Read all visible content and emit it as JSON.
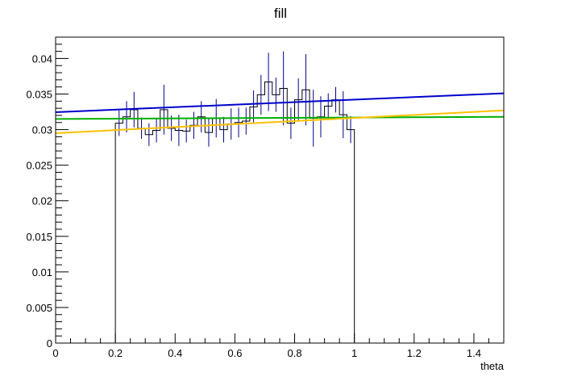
{
  "chart_data": {
    "type": "line",
    "title": "fill",
    "xlabel": "theta",
    "ylabel": "",
    "xlim": [
      0,
      1.5
    ],
    "ylim": [
      0,
      0.043
    ],
    "grid": false,
    "x_ticks": [
      0,
      0.2,
      0.4,
      0.6,
      0.8,
      1,
      1.2,
      1.4
    ],
    "x_tick_labels": [
      "0",
      "0.2",
      "0.4",
      "0.6",
      "0.8",
      "1",
      "1.2",
      "1.4"
    ],
    "y_ticks": [
      0,
      0.005,
      0.01,
      0.015,
      0.02,
      0.025,
      0.03,
      0.035,
      0.04
    ],
    "y_tick_labels": [
      "0",
      "0.005",
      "0.01",
      "0.015",
      "0.02",
      "0.025",
      "0.03",
      "0.035",
      "0.04"
    ],
    "histogram": {
      "color": "#000000",
      "error_color": "#00008b",
      "bin_edges": [
        0.175,
        0.2,
        0.225,
        0.25,
        0.275,
        0.3,
        0.325,
        0.35,
        0.375,
        0.4,
        0.425,
        0.45,
        0.475,
        0.5,
        0.525,
        0.55,
        0.575,
        0.6,
        0.625,
        0.65,
        0.675,
        0.7,
        0.725,
        0.75,
        0.775,
        0.8,
        0.825,
        0.85,
        0.875,
        0.9,
        0.925,
        0.95,
        0.975,
        1.0
      ],
      "values": [
        0,
        0.0309,
        0.0318,
        0.0328,
        0.0302,
        0.0293,
        0.0299,
        0.0328,
        0.0302,
        0.0299,
        0.0298,
        0.0306,
        0.0318,
        0.0296,
        0.0316,
        0.03,
        0.0308,
        0.031,
        0.0312,
        0.0332,
        0.0349,
        0.0367,
        0.0349,
        0.0358,
        0.0309,
        0.0342,
        0.0356,
        0.0316,
        0.0318,
        0.0333,
        0.0342,
        0.0321,
        0.03
      ],
      "errors": [
        0,
        0.0018,
        0.0022,
        0.0025,
        0.0015,
        0.0016,
        0.0017,
        0.0035,
        0.0018,
        0.0022,
        0.0016,
        0.0019,
        0.0022,
        0.002,
        0.0027,
        0.0018,
        0.0022,
        0.0021,
        0.0019,
        0.0023,
        0.0028,
        0.0041,
        0.0024,
        0.0052,
        0.0022,
        0.003,
        0.005,
        0.004,
        0.0029,
        0.0018,
        0.0018,
        0.0033,
        0.0019
      ]
    },
    "series": [
      {
        "x": [
          0,
          1.5
        ],
        "y": [
          0.03245,
          0.0351
        ],
        "color": "#0000cc"
      },
      {
        "x": [
          0,
          1.5
        ],
        "y": [
          0.0315,
          0.0318
        ],
        "color": "#00b000"
      },
      {
        "x": [
          0,
          1.5
        ],
        "y": [
          0.0295,
          0.0327
        ],
        "color": "#ffc000"
      }
    ]
  }
}
